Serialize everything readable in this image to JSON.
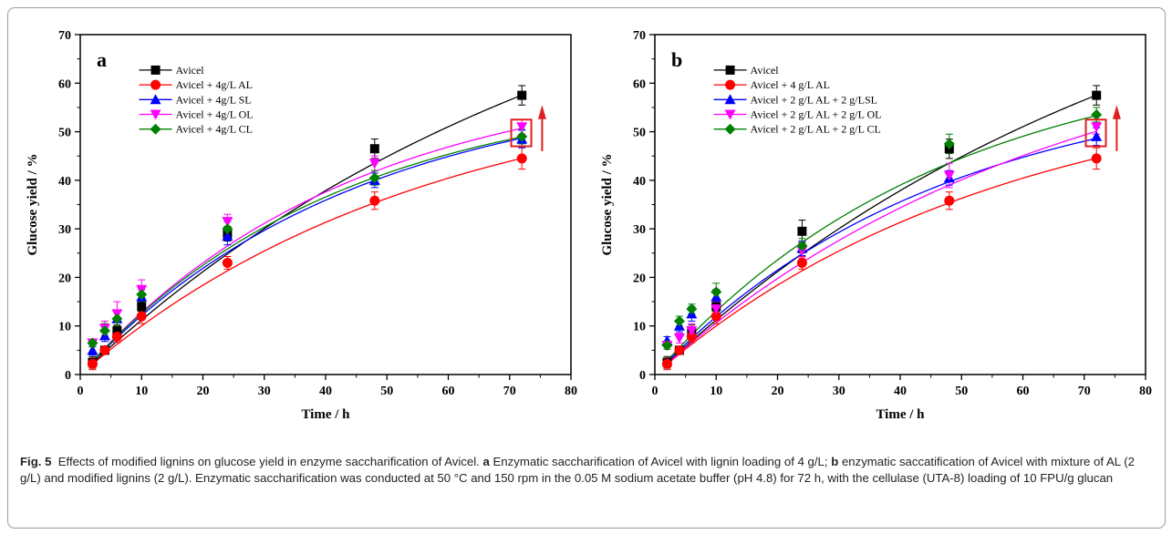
{
  "chart_data": [
    {
      "panel": "a",
      "type": "scatter",
      "xlabel": "Time / h",
      "ylabel": "Glucose yield / %",
      "xlim": [
        0,
        80
      ],
      "ylim": [
        0,
        70
      ],
      "xticks": [
        0,
        10,
        20,
        30,
        40,
        50,
        60,
        70,
        80
      ],
      "yticks": [
        0,
        10,
        20,
        30,
        40,
        50,
        60,
        70
      ],
      "legend_position": "top-left",
      "x": [
        2,
        4,
        6,
        10,
        24,
        48,
        72
      ],
      "series": [
        {
          "name": "Avicel",
          "color": "#000000",
          "marker": "square",
          "values": [
            2.5,
            5.0,
            9.0,
            14.0,
            29.0,
            46.5,
            57.5
          ],
          "errors": [
            1.2,
            0.8,
            1.2,
            1.0,
            1.5,
            2.0,
            2.0
          ],
          "fit_asymptote": 100,
          "fit_k": 0.0119
        },
        {
          "name": "Avicel + 4g/L AL",
          "color": "#ff0000",
          "marker": "circle",
          "values": [
            2.2,
            5.0,
            7.8,
            12.0,
            23.0,
            35.8,
            44.5
          ],
          "errors": [
            1.2,
            0.8,
            1.2,
            1.5,
            1.3,
            1.8,
            2.2
          ],
          "fit_asymptote": 62,
          "fit_k": 0.0176
        },
        {
          "name": "Avicel + 4g/L SL",
          "color": "#0000ff",
          "marker": "triangle-up",
          "values": [
            5.0,
            8.0,
            11.5,
            16.0,
            28.5,
            40.0,
            48.5
          ],
          "errors": [
            1.0,
            1.2,
            1.5,
            1.5,
            1.8,
            1.5,
            1.8
          ],
          "fit_asymptote": 61,
          "fit_k": 0.0222
        },
        {
          "name": "Avicel + 4g/L OL",
          "color": "#ff00ff",
          "marker": "triangle-down",
          "values": [
            6.5,
            9.5,
            12.5,
            17.5,
            31.5,
            43.5,
            51.0
          ],
          "errors": [
            0.8,
            1.5,
            2.5,
            2.0,
            1.5,
            1.5,
            1.5
          ],
          "fit_asymptote": 63,
          "fit_k": 0.0227
        },
        {
          "name": "Avicel + 4g/L CL",
          "color": "#008000",
          "marker": "diamond",
          "values": [
            6.5,
            9.0,
            11.5,
            16.5,
            30.0,
            40.5,
            49.0
          ],
          "errors": [
            0.8,
            1.5,
            1.5,
            1.5,
            1.5,
            1.5,
            1.5
          ],
          "fit_asymptote": 60,
          "fit_k": 0.0235
        }
      ]
    },
    {
      "panel": "b",
      "type": "scatter",
      "xlabel": "Time / h",
      "ylabel": "Glucose yield / %",
      "xlim": [
        0,
        80
      ],
      "ylim": [
        0,
        70
      ],
      "xticks": [
        0,
        10,
        20,
        30,
        40,
        50,
        60,
        70,
        80
      ],
      "yticks": [
        0,
        10,
        20,
        30,
        40,
        50,
        60,
        70
      ],
      "legend_position": "top-left",
      "x": [
        2,
        4,
        6,
        10,
        24,
        48,
        72
      ],
      "series": [
        {
          "name": "Avicel",
          "color": "#000000",
          "marker": "square",
          "values": [
            2.5,
            5.0,
            9.0,
            14.0,
            29.5,
            46.5,
            57.5
          ],
          "errors": [
            1.2,
            0.8,
            1.2,
            1.0,
            2.3,
            2.0,
            2.0
          ],
          "fit_asymptote": 100,
          "fit_k": 0.0119
        },
        {
          "name": "Avicel + 4 g/L AL",
          "color": "#ff0000",
          "marker": "circle",
          "values": [
            2.2,
            5.0,
            7.8,
            12.0,
            23.0,
            35.8,
            44.5
          ],
          "errors": [
            1.2,
            0.8,
            1.2,
            1.5,
            1.3,
            1.8,
            2.2
          ],
          "fit_asymptote": 62,
          "fit_k": 0.0176
        },
        {
          "name": "Avicel + 2 g/L AL + 2 g/LSL",
          "color": "#0000ff",
          "marker": "triangle-up",
          "values": [
            7.0,
            10.0,
            12.5,
            16.0,
            26.0,
            40.5,
            49.0
          ],
          "errors": [
            0.8,
            1.2,
            1.5,
            1.5,
            1.5,
            1.5,
            1.8
          ],
          "fit_asymptote": 62,
          "fit_k": 0.0213
        },
        {
          "name": "Avicel + 2 g/L AL + 2 g/L OL",
          "color": "#ff00ff",
          "marker": "triangle-down",
          "values": [
            6.0,
            7.5,
            9.0,
            13.5,
            25.5,
            41.0,
            51.0
          ],
          "errors": [
            0.8,
            1.0,
            1.5,
            1.5,
            1.5,
            2.5,
            1.5
          ],
          "fit_asymptote": 75,
          "fit_k": 0.0153
        },
        {
          "name": "Avicel + 2 g/L AL + 2 g/L CL",
          "color": "#008000",
          "marker": "diamond",
          "values": [
            6.0,
            11.0,
            13.5,
            17.0,
            26.5,
            47.5,
            53.5
          ],
          "errors": [
            0.8,
            1.0,
            1.0,
            1.8,
            1.5,
            2.0,
            1.5
          ],
          "fit_asymptote": 68,
          "fit_k": 0.0213
        }
      ]
    }
  ],
  "caption": {
    "label": "Fig. 5",
    "part1": "Effects of modified lignins on glucose yield in enzyme saccharification of Avicel.",
    "ref_a": "a",
    "part2": "Enzymatic saccharification of Avicel with lignin loading of 4 g/L;",
    "ref_b": "b",
    "part3": "enzymatic saccatification of Avicel with mixture of AL (2 g/L) and modified lignins (2 g/L). Enzymatic saccharification was conducted at 50 °C and 150 rpm in the 0.05 M sodium acetate buffer (pH 4.8) for 72 h, with the cellulase (UTA-8) loading of 10 FPU/g glucan"
  }
}
